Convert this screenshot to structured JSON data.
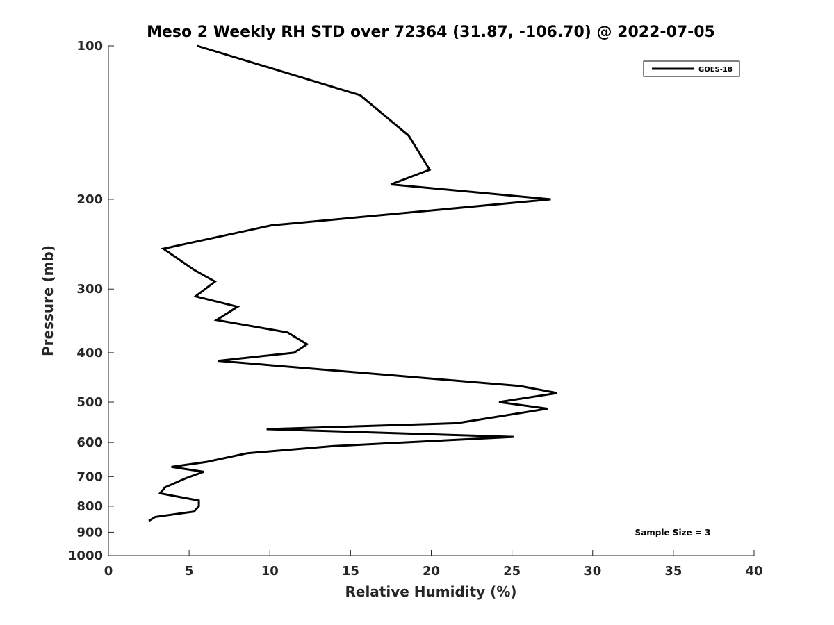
{
  "chart_data": {
    "type": "line",
    "title": "Meso 2 Weekly RH STD over 72364 (31.87, -106.70) @ 2022-07-05",
    "xlabel": "Relative Humidity (%)",
    "ylabel": "Pressure (mb)",
    "xlim": [
      0,
      40
    ],
    "ylim": [
      1000,
      100
    ],
    "y_scale": "log",
    "grid": false,
    "legend_position": "top-right",
    "x_ticks": [
      0,
      5,
      10,
      15,
      20,
      25,
      30,
      35,
      40
    ],
    "y_ticks": [
      100,
      200,
      300,
      400,
      500,
      600,
      700,
      800,
      900,
      1000
    ],
    "annotation": "Sample Size = 3",
    "series": [
      {
        "name": "GOES-18",
        "color": "#000000",
        "points": [
          [
            5.5,
            100
          ],
          [
            15.6,
            125
          ],
          [
            18.6,
            150
          ],
          [
            19.9,
            175
          ],
          [
            17.5,
            187
          ],
          [
            27.4,
            200
          ],
          [
            10.1,
            225
          ],
          [
            3.4,
            250
          ],
          [
            5.3,
            275
          ],
          [
            6.6,
            290
          ],
          [
            5.4,
            310
          ],
          [
            8.0,
            325
          ],
          [
            6.7,
            345
          ],
          [
            11.1,
            365
          ],
          [
            12.3,
            385
          ],
          [
            11.5,
            400
          ],
          [
            6.8,
            415
          ],
          [
            18.3,
            445
          ],
          [
            25.5,
            465
          ],
          [
            27.8,
            480
          ],
          [
            24.2,
            500
          ],
          [
            27.2,
            515
          ],
          [
            21.6,
            550
          ],
          [
            9.8,
            565
          ],
          [
            25.1,
            585
          ],
          [
            13.9,
            610
          ],
          [
            8.6,
            630
          ],
          [
            6.1,
            655
          ],
          [
            3.9,
            670
          ],
          [
            5.9,
            685
          ],
          [
            4.8,
            705
          ],
          [
            3.5,
            735
          ],
          [
            3.2,
            755
          ],
          [
            5.6,
            780
          ],
          [
            5.6,
            800
          ],
          [
            5.3,
            820
          ],
          [
            2.9,
            840
          ],
          [
            2.5,
            855
          ]
        ]
      }
    ]
  }
}
